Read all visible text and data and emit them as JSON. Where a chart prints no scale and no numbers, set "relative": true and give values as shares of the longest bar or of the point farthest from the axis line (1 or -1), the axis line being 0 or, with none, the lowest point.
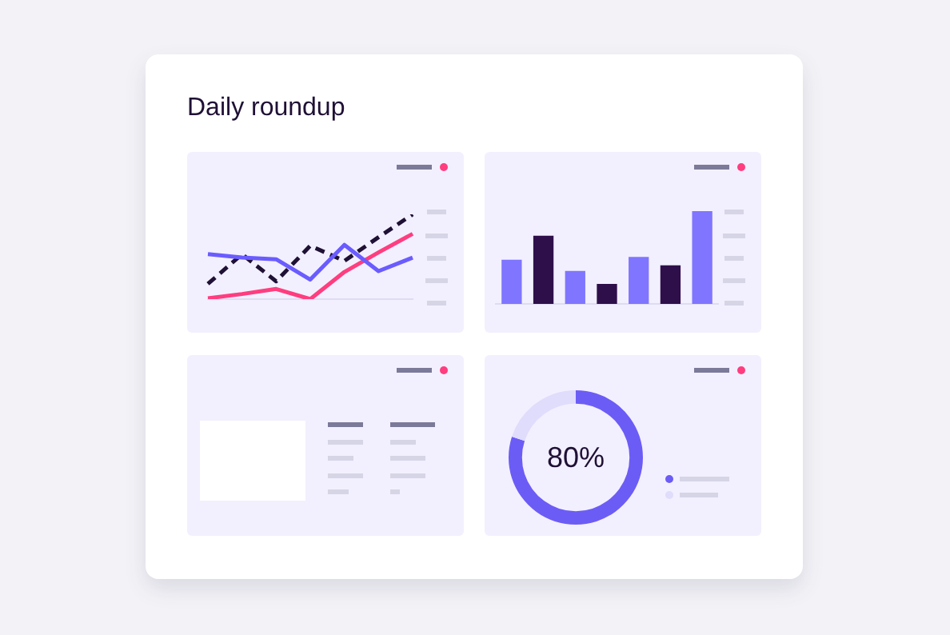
{
  "chart_data": [
    {
      "type": "line",
      "title": "Daily roundup",
      "relative": true,
      "marker": "none",
      "categories": [
        null,
        null,
        null,
        null,
        null,
        null,
        null
      ],
      "series": [
        {
          "color": "#6a5cff",
          "line_style": "solid",
          "values": [
            0.53,
            0.49,
            0.47,
            0.23,
            0.64,
            0.33,
            0.49
          ]
        },
        {
          "color": "#1f1035",
          "line_style": "dashed",
          "values": [
            0.18,
            0.53,
            0.21,
            0.63,
            0.45,
            0.73,
            1
          ]
        },
        {
          "color": "#ff3d7f",
          "line_style": "solid",
          "values": [
            0.01,
            0.06,
            0.12,
            0,
            0.32,
            0.55,
            0.77
          ]
        }
      ]
    },
    {
      "type": "bar",
      "relative": true,
      "categories": [
        null,
        null,
        null,
        null,
        null,
        null,
        null
      ],
      "series": [
        {
          "colors": [
            "#8075ff",
            "#2e0f4a",
            "#8075ff",
            "#2e0f4a",
            "#8075ff",
            "#2e0f4a",
            "#8075ff"
          ],
          "values": [
            0.47,
            0.73,
            0.35,
            0.21,
            0.5,
            0.41,
            1
          ]
        }
      ]
    },
    {
      "type": "donut",
      "categories": [
        null,
        null
      ],
      "values": [
        80,
        20
      ],
      "colors": [
        "#6c5cf6",
        "#e0dcfb"
      ],
      "value_labels": [
        "80%",
        null
      ]
    }
  ]
}
